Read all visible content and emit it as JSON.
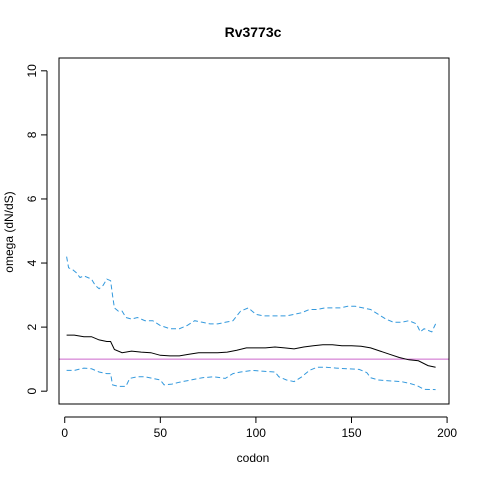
{
  "chart_data": {
    "type": "line",
    "title": "Rv3773c",
    "xlabel": "codon",
    "ylabel": "omega (dN/dS)",
    "xlim": [
      -3,
      201
    ],
    "ylim": [
      -0.4,
      10.4
    ],
    "x_ticks": [
      0,
      50,
      100,
      150,
      200
    ],
    "y_ticks": [
      0,
      2,
      4,
      6,
      8,
      10
    ],
    "x_tick_labels": [
      "0",
      "50",
      "100",
      "150",
      "200"
    ],
    "y_tick_labels": [
      "0",
      "2",
      "4",
      "6",
      "8",
      "10"
    ],
    "grid": false,
    "reference_line": {
      "y": 1,
      "color": "#cc66cc"
    },
    "series": [
      {
        "style": "dashed",
        "color": "#3399dd",
        "points": [
          [
            1,
            4.2
          ],
          [
            2,
            3.85
          ],
          [
            4,
            3.8
          ],
          [
            6,
            3.7
          ],
          [
            8,
            3.55
          ],
          [
            10,
            3.6
          ],
          [
            12,
            3.55
          ],
          [
            14,
            3.5
          ],
          [
            16,
            3.3
          ],
          [
            18,
            3.2
          ],
          [
            20,
            3.3
          ],
          [
            22,
            3.5
          ],
          [
            24,
            3.45
          ],
          [
            25,
            3.0
          ],
          [
            26,
            2.6
          ],
          [
            28,
            2.5
          ],
          [
            30,
            2.5
          ],
          [
            32,
            2.3
          ],
          [
            35,
            2.25
          ],
          [
            38,
            2.3
          ],
          [
            42,
            2.2
          ],
          [
            46,
            2.2
          ],
          [
            50,
            2.05
          ],
          [
            55,
            1.95
          ],
          [
            60,
            1.95
          ],
          [
            64,
            2.05
          ],
          [
            68,
            2.2
          ],
          [
            72,
            2.15
          ],
          [
            76,
            2.1
          ],
          [
            80,
            2.1
          ],
          [
            84,
            2.15
          ],
          [
            88,
            2.2
          ],
          [
            92,
            2.5
          ],
          [
            96,
            2.6
          ],
          [
            98,
            2.5
          ],
          [
            100,
            2.4
          ],
          [
            104,
            2.35
          ],
          [
            110,
            2.35
          ],
          [
            116,
            2.35
          ],
          [
            120,
            2.4
          ],
          [
            124,
            2.45
          ],
          [
            128,
            2.55
          ],
          [
            132,
            2.55
          ],
          [
            136,
            2.6
          ],
          [
            140,
            2.6
          ],
          [
            144,
            2.6
          ],
          [
            148,
            2.65
          ],
          [
            152,
            2.65
          ],
          [
            156,
            2.6
          ],
          [
            160,
            2.55
          ],
          [
            164,
            2.4
          ],
          [
            168,
            2.25
          ],
          [
            172,
            2.15
          ],
          [
            176,
            2.15
          ],
          [
            180,
            2.2
          ],
          [
            184,
            2.1
          ],
          [
            186,
            1.85
          ],
          [
            188,
            1.95
          ],
          [
            190,
            1.9
          ],
          [
            192,
            1.85
          ],
          [
            194,
            2.1
          ]
        ]
      },
      {
        "style": "solid",
        "color": "#000000",
        "points": [
          [
            1,
            1.75
          ],
          [
            5,
            1.75
          ],
          [
            10,
            1.7
          ],
          [
            14,
            1.7
          ],
          [
            18,
            1.6
          ],
          [
            22,
            1.55
          ],
          [
            24,
            1.55
          ],
          [
            26,
            1.3
          ],
          [
            30,
            1.2
          ],
          [
            35,
            1.25
          ],
          [
            40,
            1.22
          ],
          [
            45,
            1.2
          ],
          [
            50,
            1.12
          ],
          [
            55,
            1.1
          ],
          [
            60,
            1.1
          ],
          [
            65,
            1.15
          ],
          [
            70,
            1.2
          ],
          [
            75,
            1.2
          ],
          [
            80,
            1.2
          ],
          [
            85,
            1.22
          ],
          [
            90,
            1.28
          ],
          [
            95,
            1.35
          ],
          [
            100,
            1.35
          ],
          [
            105,
            1.35
          ],
          [
            110,
            1.38
          ],
          [
            115,
            1.35
          ],
          [
            120,
            1.32
          ],
          [
            125,
            1.38
          ],
          [
            130,
            1.42
          ],
          [
            135,
            1.45
          ],
          [
            140,
            1.45
          ],
          [
            145,
            1.42
          ],
          [
            150,
            1.42
          ],
          [
            155,
            1.4
          ],
          [
            160,
            1.35
          ],
          [
            165,
            1.25
          ],
          [
            170,
            1.15
          ],
          [
            175,
            1.05
          ],
          [
            180,
            0.98
          ],
          [
            185,
            0.95
          ],
          [
            190,
            0.8
          ],
          [
            194,
            0.75
          ]
        ]
      },
      {
        "style": "dashed",
        "color": "#3399dd",
        "points": [
          [
            1,
            0.65
          ],
          [
            5,
            0.65
          ],
          [
            10,
            0.72
          ],
          [
            14,
            0.7
          ],
          [
            18,
            0.6
          ],
          [
            22,
            0.55
          ],
          [
            24,
            0.55
          ],
          [
            25,
            0.2
          ],
          [
            28,
            0.15
          ],
          [
            32,
            0.15
          ],
          [
            34,
            0.4
          ],
          [
            38,
            0.45
          ],
          [
            42,
            0.45
          ],
          [
            46,
            0.4
          ],
          [
            50,
            0.35
          ],
          [
            52,
            0.2
          ],
          [
            56,
            0.22
          ],
          [
            60,
            0.28
          ],
          [
            66,
            0.35
          ],
          [
            72,
            0.42
          ],
          [
            78,
            0.45
          ],
          [
            84,
            0.4
          ],
          [
            88,
            0.55
          ],
          [
            92,
            0.6
          ],
          [
            98,
            0.65
          ],
          [
            104,
            0.62
          ],
          [
            110,
            0.6
          ],
          [
            112,
            0.45
          ],
          [
            116,
            0.35
          ],
          [
            120,
            0.3
          ],
          [
            124,
            0.45
          ],
          [
            128,
            0.65
          ],
          [
            132,
            0.75
          ],
          [
            136,
            0.75
          ],
          [
            142,
            0.72
          ],
          [
            148,
            0.7
          ],
          [
            154,
            0.68
          ],
          [
            158,
            0.58
          ],
          [
            160,
            0.42
          ],
          [
            164,
            0.35
          ],
          [
            170,
            0.32
          ],
          [
            176,
            0.3
          ],
          [
            180,
            0.25
          ],
          [
            184,
            0.18
          ],
          [
            188,
            0.06
          ],
          [
            194,
            0.05
          ]
        ]
      }
    ]
  }
}
